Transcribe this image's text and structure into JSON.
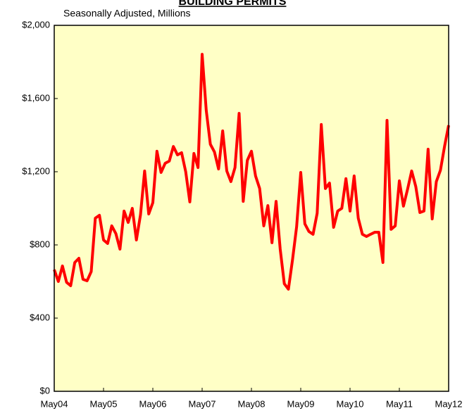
{
  "chart_data": {
    "type": "line",
    "title": "BUILDING PERMITS",
    "subtitle": "Seasonally Adjusted, Millions",
    "categories": [
      "May04",
      null,
      null,
      null,
      null,
      null,
      null,
      null,
      null,
      null,
      null,
      null,
      "May05",
      null,
      null,
      null,
      null,
      null,
      null,
      null,
      null,
      null,
      null,
      null,
      "May06",
      null,
      null,
      null,
      null,
      null,
      null,
      null,
      null,
      null,
      null,
      null,
      "May07",
      null,
      null,
      null,
      null,
      null,
      null,
      null,
      null,
      null,
      null,
      null,
      "May08",
      null,
      null,
      null,
      null,
      null,
      null,
      null,
      null,
      null,
      null,
      null,
      "May09",
      null,
      null,
      null,
      null,
      null,
      null,
      null,
      null,
      null,
      null,
      null,
      "May10",
      null,
      null,
      null,
      null,
      null,
      null,
      null,
      null,
      null,
      null,
      null,
      "May11",
      null,
      null,
      null,
      null,
      null,
      null,
      null,
      null,
      null,
      null,
      null,
      "May12"
    ],
    "series": [
      {
        "name": "Building Permits",
        "color": "#ff0000",
        "values": [
          665,
          600,
          685,
          596,
          577,
          704,
          727,
          612,
          604,
          654,
          946,
          962,
          827,
          808,
          904,
          862,
          777,
          985,
          923,
          1000,
          827,
          965,
          1204,
          969,
          1031,
          1312,
          1196,
          1246,
          1258,
          1338,
          1292,
          1304,
          1200,
          1035,
          1300,
          1223,
          1842,
          1535,
          1350,
          1308,
          1215,
          1423,
          1204,
          1146,
          1223,
          1519,
          1038,
          1262,
          1312,
          1177,
          1108,
          904,
          1015,
          812,
          1038,
          777,
          588,
          558,
          719,
          900,
          1196,
          915,
          873,
          858,
          973,
          1458,
          1108,
          1138,
          896,
          985,
          1000,
          1162,
          985,
          1177,
          946,
          858,
          846,
          858,
          869,
          869,
          704,
          1481,
          885,
          904,
          1150,
          1012,
          1104,
          1204,
          1119,
          977,
          985,
          1323,
          942,
          1146,
          1208,
          1338,
          1454
        ]
      }
    ],
    "ylim": [
      0,
      2000
    ],
    "yticks": [
      {
        "value": 0,
        "label": "$0"
      },
      {
        "value": 400,
        "label": "$400"
      },
      {
        "value": 800,
        "label": "$800"
      },
      {
        "value": 1200,
        "label": "$1,200"
      },
      {
        "value": 1600,
        "label": "$1,600"
      },
      {
        "value": 2000,
        "label": "$2,000"
      }
    ],
    "background": "#ffffc6"
  }
}
